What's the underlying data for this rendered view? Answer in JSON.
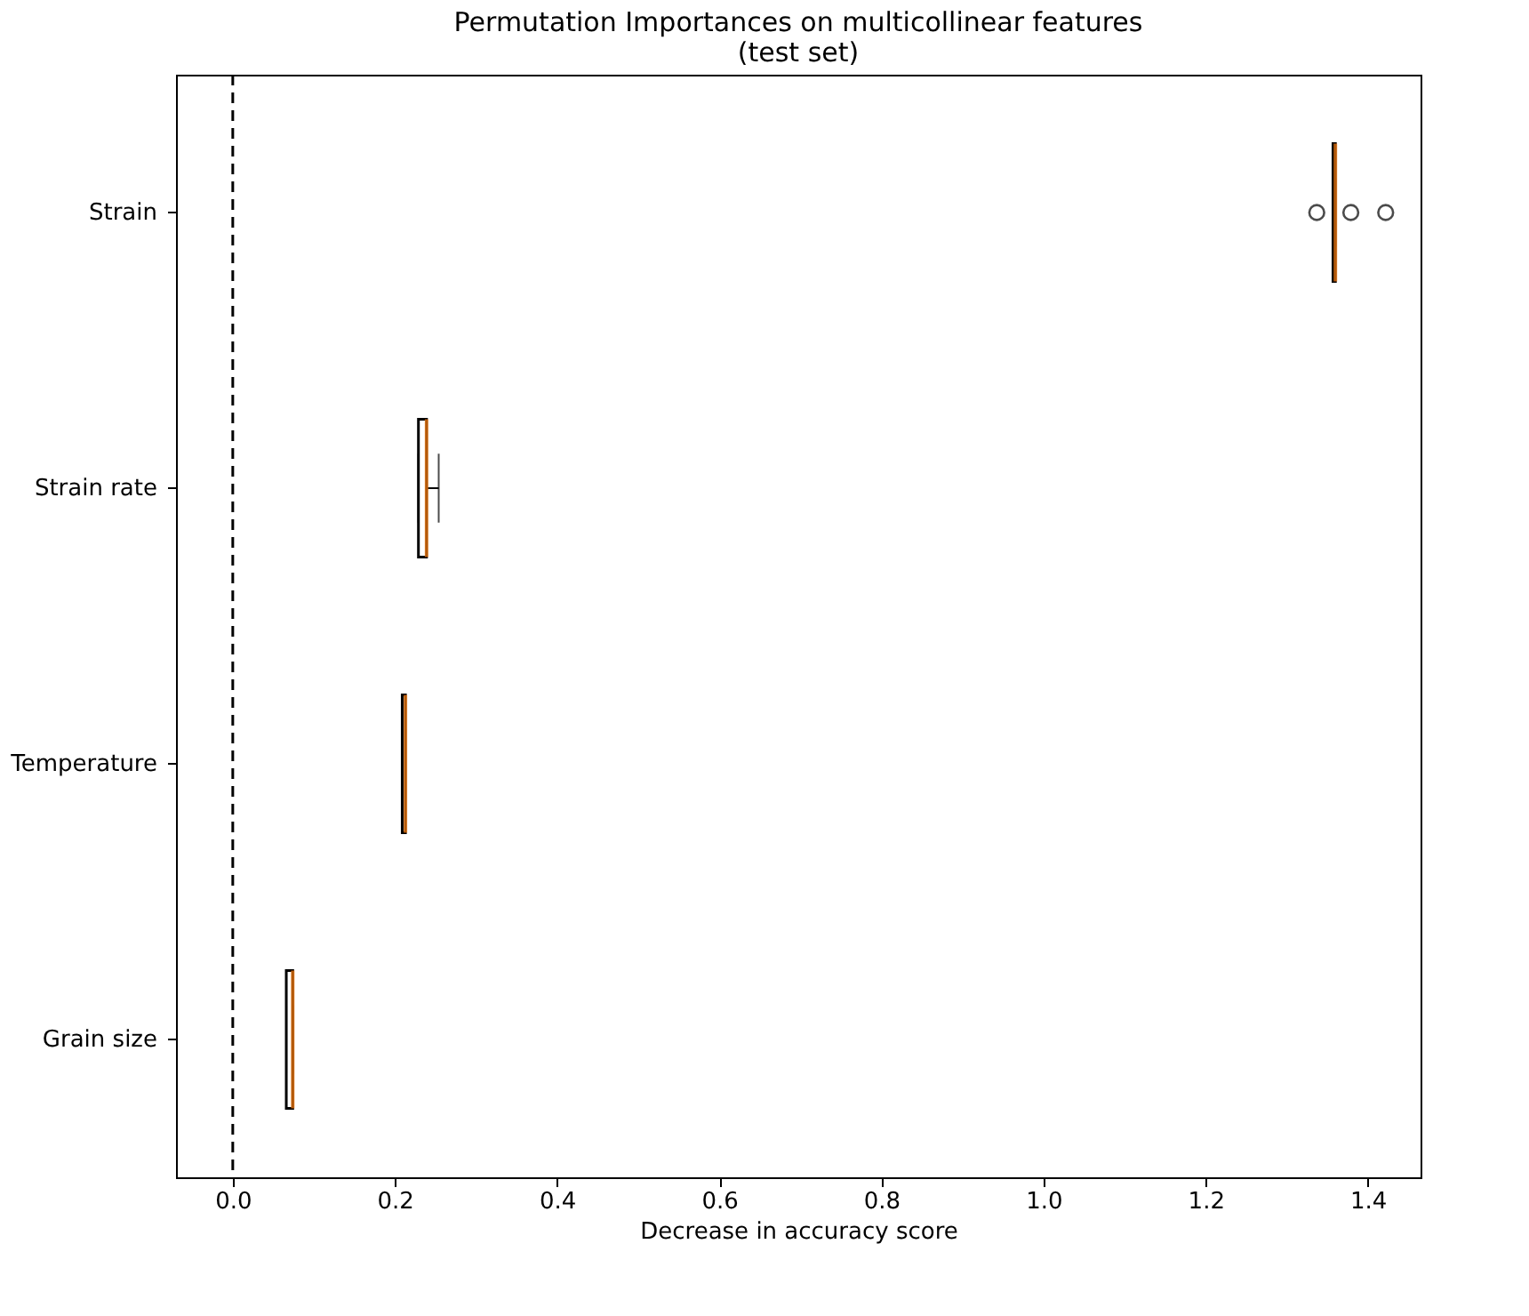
{
  "chart_data": {
    "type": "box",
    "title": "Permutation Importances on multicollinear features\n(test set)",
    "xlabel": "Decrease in accuracy score",
    "orientation": "horizontal",
    "categories": [
      "Strain",
      "Strain rate",
      "Temperature",
      "Grain size"
    ],
    "series": [
      {
        "color": "#ff7f0e",
        "boxes": [
          {
            "low": 1.357,
            "q1": 1.357,
            "median": 1.36,
            "q3": 1.36,
            "high": 1.36,
            "outliers": [
              1.337,
              1.379,
              1.422
            ]
          },
          {
            "low": 0.229,
            "q1": 0.229,
            "median": 0.239,
            "q3": 0.239,
            "high": 0.254
          },
          {
            "low": 0.209,
            "q1": 0.209,
            "median": 0.213,
            "q3": 0.213,
            "high": 0.213
          },
          {
            "low": 0.066,
            "q1": 0.066,
            "median": 0.074,
            "q3": 0.074,
            "high": 0.074
          }
        ]
      }
    ],
    "xlim": [
      -0.07,
      1.465
    ],
    "xticks": [
      {
        "value": 0,
        "label": "0.0"
      },
      {
        "value": 0.2,
        "label": "0.2"
      },
      {
        "value": 0.4,
        "label": "0.4"
      },
      {
        "value": 0.6,
        "label": "0.6"
      },
      {
        "value": 0.8,
        "label": "0.8"
      },
      {
        "value": 1.0,
        "label": "1.0"
      },
      {
        "value": 1.2,
        "label": "1.2"
      },
      {
        "value": 1.4,
        "label": "1.4"
      }
    ],
    "ref_lines": [
      {
        "axis": "x",
        "value": 0,
        "color": "#000000",
        "line_style": "dashed"
      }
    ],
    "grid": false
  }
}
